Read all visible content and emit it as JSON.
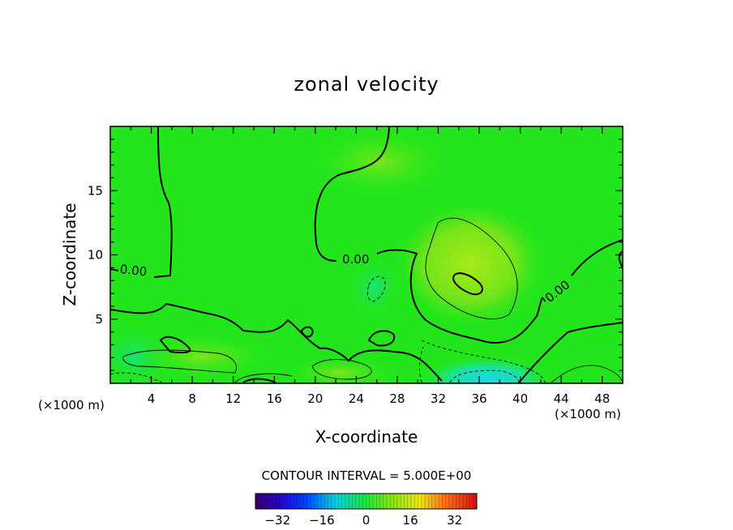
{
  "chart_data": {
    "type": "contour",
    "title": "zonal velocity",
    "xlabel": "X-coordinate",
    "ylabel": "Z-coordinate",
    "x_unit_left": "(×1000 m)",
    "x_unit_right": "(×1000 m)",
    "xlim": [
      0,
      50
    ],
    "ylim": [
      0,
      20
    ],
    "x_ticks": [
      4,
      8,
      12,
      16,
      20,
      24,
      28,
      32,
      36,
      40,
      44,
      48
    ],
    "y_ticks": [
      5,
      10,
      15
    ],
    "contour_interval_text": "CONTOUR INTERVAL = 5.000E+00",
    "contour_labels": [
      "0.00",
      "0.00",
      "0.00"
    ],
    "colorbar": {
      "range": [
        -40,
        40
      ],
      "ticks": [
        -32,
        -16,
        0,
        16,
        32
      ],
      "colormap": "rainbow (purple-blue-cyan-green-yellow-red)"
    },
    "field_color": "#22e61b",
    "field_notes": {
      "max_region": {
        "x": 35,
        "y": 8,
        "level": "high positive (yellow-green)"
      },
      "min_region": {
        "x": 36,
        "y": 0.5,
        "level": "negative (cyan)"
      }
    }
  }
}
